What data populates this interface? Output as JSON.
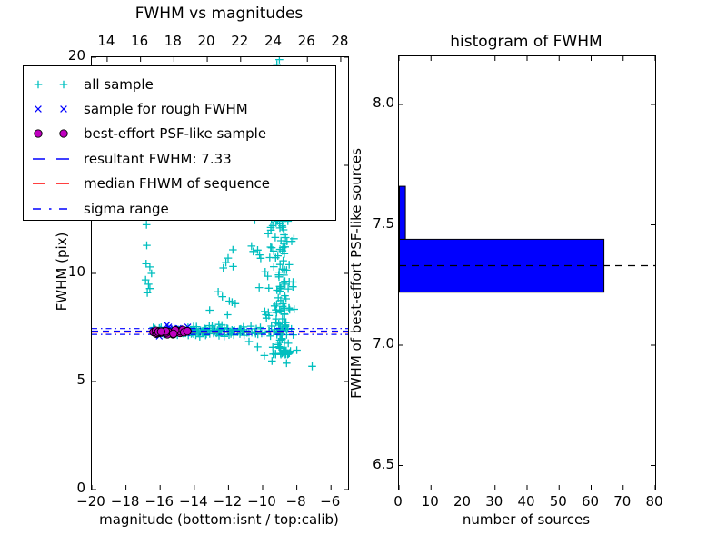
{
  "figure": {
    "background": "#ffffff",
    "text_color": "#000000"
  },
  "chart_data": [
    {
      "type": "scatter",
      "title": "FWHM vs magnitudes",
      "xlabel": "magnitude (bottom:isnt / top:calib)",
      "ylabel": "FWHM (pix)",
      "xlim": [
        -20,
        -5
      ],
      "ylim": [
        0,
        20
      ],
      "grid": false,
      "xtick_values": [
        -20,
        -18,
        -16,
        -14,
        -12,
        -10,
        -8,
        -6
      ],
      "xtick_labels": [
        "−20",
        "−18",
        "−16",
        "−14",
        "−12",
        "−10",
        "−8",
        "−6"
      ],
      "ytick_values": [
        0,
        5,
        10,
        15,
        20
      ],
      "ytick_labels": [
        "0",
        "5",
        "10",
        "15",
        "20"
      ],
      "top_axis": {
        "tick_labels": [
          "14",
          "16",
          "18",
          "20",
          "22",
          "24",
          "26",
          "28"
        ],
        "frac_start": 0.06,
        "frac_step": 0.1302
      },
      "legend_position": "upper left",
      "legend": [
        {
          "label": "all sample",
          "marker": "plus",
          "color": "#00bfbf"
        },
        {
          "label": "sample for rough FWHM",
          "marker": "x",
          "color": "#0000ff"
        },
        {
          "label": "best-effort PSF-like sample",
          "marker": "circle",
          "color": "#bf00bf"
        },
        {
          "label": "resultant FWHM: 7.33",
          "marker": "dashed",
          "color": "#0000ff"
        },
        {
          "label": "median FHWM of sequence",
          "marker": "dashed",
          "color": "#ff0000"
        },
        {
          "label": "sigma range",
          "marker": "dashdot",
          "color": "#0000ff"
        }
      ],
      "hlines": [
        {
          "name": "sigma-range-upper",
          "y": 7.45,
          "style": "dashdot",
          "color": "#0000ff"
        },
        {
          "name": "sigma-range-lower",
          "y": 7.18,
          "style": "dashdot",
          "color": "#0000ff"
        },
        {
          "name": "resultant-fwhm",
          "y": 7.33,
          "style": "dashed",
          "color": "#0000ff"
        },
        {
          "name": "median-fwhm",
          "y": 7.28,
          "style": "dashed",
          "color": "#ff0000"
        }
      ],
      "series": [
        {
          "name": "all sample",
          "marker": "plus",
          "color": "#00bfbf",
          "seed": 42,
          "clusters": [
            {
              "kind": "band",
              "n": 90,
              "x": [
                -16.45,
                -11.1
              ],
              "y": 7.32,
              "ysig": 0.09
            },
            {
              "kind": "band",
              "n": 40,
              "x": [
                -14.8,
                -11.0
              ],
              "y": 7.34,
              "ysig": 0.17
            },
            {
              "kind": "band",
              "n": 26,
              "x": [
                -11.1,
                -8.3
              ],
              "y": 7.3,
              "ysig": 0.14
            },
            {
              "kind": "plume",
              "n": 150,
              "cx": -8.9,
              "xsig": 0.33,
              "y": [
                6.25,
                20.4
              ],
              "pow": 2.1
            },
            {
              "kind": "plume",
              "n": 40,
              "cx": -9.35,
              "xsig": 0.55,
              "y": [
                7.9,
                15.0
              ],
              "pow": 1.3
            },
            {
              "kind": "band",
              "n": 16,
              "x": [
                -12.7,
                -10.1
              ],
              "y": 10.2,
              "ysig": 1.7
            },
            {
              "kind": "band",
              "n": 12,
              "x": [
                -9.65,
                -9.1
              ],
              "y": 19.6,
              "ysig": 1.0
            }
          ],
          "points": [
            [
              -16.8,
              12.25
            ],
            [
              -16.78,
              11.3
            ],
            [
              -16.82,
              10.45
            ],
            [
              -16.6,
              10.3
            ],
            [
              -16.85,
              9.7
            ],
            [
              -16.68,
              9.5
            ],
            [
              -16.6,
              9.3
            ],
            [
              -16.75,
              9.1
            ],
            [
              -16.5,
              10.0
            ],
            [
              -10.3,
              6.6
            ],
            [
              -9.9,
              6.2
            ],
            [
              -9.45,
              5.95
            ],
            [
              -8.95,
              6.3
            ],
            [
              -8.6,
              5.85
            ],
            [
              -8.0,
              6.45
            ],
            [
              -7.1,
              5.7
            ],
            [
              -10.8,
              6.85
            ],
            [
              -12.15,
              10.5
            ],
            [
              -11.6,
              8.6
            ],
            [
              -13.1,
              8.3
            ]
          ]
        },
        {
          "name": "sample for rough FWHM",
          "marker": "x",
          "color": "#0000ff",
          "seed": 7,
          "clusters": [
            {
              "kind": "band",
              "n": 20,
              "x": [
                -16.35,
                -14.3
              ],
              "y": 7.33,
              "ysig": 0.08
            }
          ],
          "points": [
            [
              -15.6,
              7.62
            ],
            [
              -15.5,
              7.52
            ],
            [
              -16.05,
              7.1
            ]
          ]
        },
        {
          "name": "best-effort PSF-like sample",
          "marker": "circle",
          "color": "#bf00bf",
          "seed": 13,
          "clusters": [
            {
              "kind": "band",
              "n": 28,
              "x": [
                -16.4,
                -14.35
              ],
              "y": 7.3,
              "ysig": 0.045
            }
          ],
          "points": []
        }
      ]
    },
    {
      "type": "bar",
      "orientation": "horizontal",
      "title": "histogram of FWHM",
      "xlabel": "number of sources",
      "ylabel": "FWHM of best-effort PSF-like sources",
      "xlim": [
        0,
        80
      ],
      "ylim": [
        6.4,
        8.2
      ],
      "grid": false,
      "xtick_values": [
        0,
        10,
        20,
        30,
        40,
        50,
        60,
        70,
        80
      ],
      "xtick_labels": [
        "0",
        "10",
        "20",
        "30",
        "40",
        "50",
        "60",
        "70",
        "80"
      ],
      "ytick_values": [
        6.5,
        7.0,
        7.5,
        8.0
      ],
      "ytick_labels": [
        "6.5",
        "7.0",
        "7.5",
        "8.0"
      ],
      "bar_color": "#0000ff",
      "bar_edge_color": "#000000",
      "bins": [
        {
          "from": 7.22,
          "to": 7.44,
          "count": 64
        },
        {
          "from": 7.44,
          "to": 7.66,
          "count": 2
        }
      ],
      "dashed_line": {
        "y": 7.33,
        "color": "#000000",
        "style": "dashed"
      }
    }
  ]
}
